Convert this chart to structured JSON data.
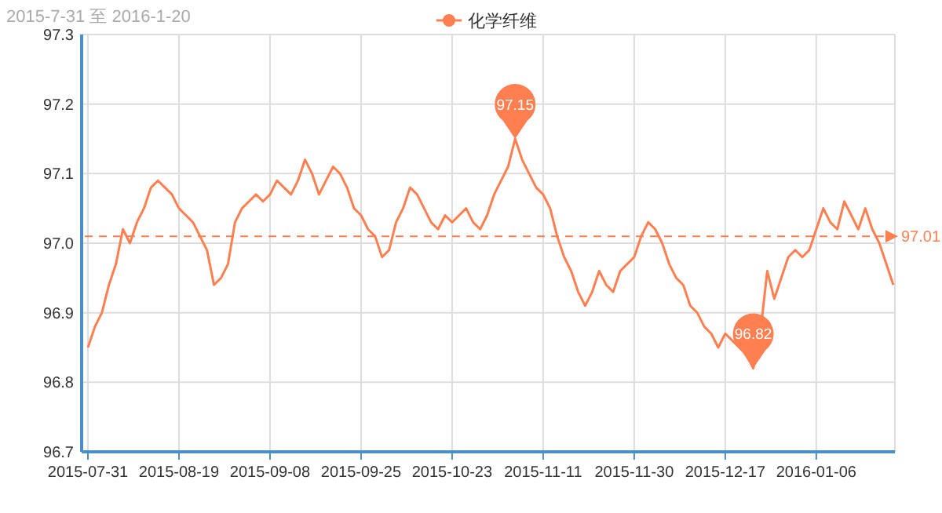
{
  "chart_data": {
    "type": "line",
    "title": "2015-7-31 至 2016-1-20",
    "categories": [
      "2015-07-31",
      null,
      null,
      null,
      null,
      null,
      null,
      null,
      null,
      null,
      null,
      null,
      null,
      "2015-08-19",
      null,
      null,
      null,
      null,
      null,
      null,
      null,
      null,
      null,
      null,
      null,
      null,
      "2015-09-08",
      null,
      null,
      null,
      null,
      null,
      null,
      null,
      null,
      null,
      null,
      null,
      null,
      "2015-09-25",
      null,
      null,
      null,
      null,
      null,
      null,
      null,
      null,
      null,
      null,
      null,
      null,
      "2015-10-23",
      null,
      null,
      null,
      null,
      null,
      null,
      null,
      null,
      null,
      null,
      null,
      null,
      "2015-11-11",
      null,
      null,
      null,
      null,
      null,
      null,
      null,
      null,
      null,
      null,
      null,
      null,
      "2015-11-30",
      null,
      null,
      null,
      null,
      null,
      null,
      null,
      null,
      null,
      null,
      null,
      null,
      "2015-12-17",
      null,
      null,
      null,
      null,
      null,
      null,
      null,
      null,
      null,
      null,
      null,
      null,
      "2016-01-06",
      null,
      null,
      null,
      null,
      null,
      null,
      null,
      null,
      null,
      null,
      null
    ],
    "series": [
      {
        "name": "化学纤维",
        "color": "#ff7f50",
        "values": [
          96.85,
          96.88,
          96.9,
          96.94,
          96.97,
          97.02,
          97.0,
          97.03,
          97.05,
          97.08,
          97.09,
          97.08,
          97.07,
          97.05,
          97.04,
          97.03,
          97.01,
          96.99,
          96.94,
          96.95,
          96.97,
          97.03,
          97.05,
          97.06,
          97.07,
          97.06,
          97.07,
          97.09,
          97.08,
          97.07,
          97.09,
          97.12,
          97.1,
          97.07,
          97.09,
          97.11,
          97.1,
          97.08,
          97.05,
          97.04,
          97.02,
          97.01,
          96.98,
          96.99,
          97.03,
          97.05,
          97.08,
          97.07,
          97.05,
          97.03,
          97.02,
          97.04,
          97.03,
          97.04,
          97.05,
          97.03,
          97.02,
          97.04,
          97.07,
          97.09,
          97.11,
          97.15,
          97.12,
          97.1,
          97.08,
          97.07,
          97.05,
          97.01,
          96.98,
          96.96,
          96.93,
          96.91,
          96.93,
          96.96,
          96.94,
          96.93,
          96.96,
          96.97,
          96.98,
          97.01,
          97.03,
          97.02,
          97.0,
          96.97,
          96.95,
          96.94,
          96.91,
          96.9,
          96.88,
          96.87,
          96.85,
          96.87,
          96.86,
          96.85,
          96.84,
          96.82,
          96.87,
          96.96,
          96.92,
          96.95,
          96.98,
          96.99,
          96.98,
          96.99,
          97.02,
          97.05,
          97.03,
          97.02,
          97.06,
          97.04,
          97.02,
          97.05,
          97.02,
          97.0,
          96.97,
          96.94
        ]
      }
    ],
    "ylim": [
      96.7,
      97.3
    ],
    "yticks": [
      96.7,
      96.8,
      96.9,
      {
        "value": 97,
        "label": "97.0"
      },
      97.1,
      97.2,
      97.3
    ],
    "grid": true,
    "legend": "top",
    "ref_lines": [
      {
        "axis": "y",
        "value": 97.01,
        "label": "97.01",
        "line_style": "dashed"
      }
    ],
    "annotations": [
      {
        "text": "97.15",
        "y": 97.15
      },
      {
        "text": "96.82",
        "y": 96.82
      }
    ]
  }
}
